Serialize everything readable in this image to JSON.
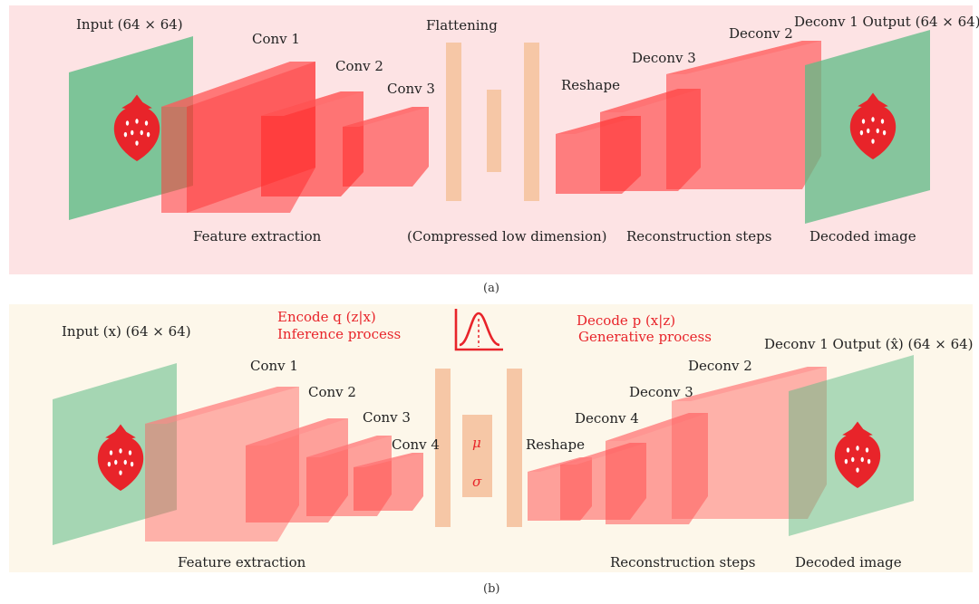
{
  "panel_a": {
    "input_label": "Input (64 × 64)",
    "conv1": "Conv 1",
    "conv2": "Conv 2",
    "conv3": "Conv 3",
    "flattening": "Flattening",
    "reshape": "Reshape",
    "deconv3": "Deconv 3",
    "deconv2": "Deconv 2",
    "output_label": "Deconv 1 Output (64 × 64)",
    "feature_extraction": "Feature extraction",
    "compressed": "(Compressed low dimension)",
    "reconstruction": "Reconstruction steps",
    "decoded": "Decoded image",
    "caption": "(a)"
  },
  "panel_b": {
    "input_label": "Input (x) (64 × 64)",
    "encode_line1": "Encode q (z|x)",
    "encode_line2": "Inference process",
    "decode_line1": "Decode p (x|z)",
    "decode_line2": "Generative process",
    "conv1": "Conv 1",
    "conv2": "Conv 2",
    "conv3": "Conv 3",
    "conv4": "Conv 4",
    "mu": "μ",
    "sigma": "σ",
    "reshape": "Reshape",
    "deconv4": "Deconv 4",
    "deconv3": "Deconv 3",
    "deconv2": "Deconv 2",
    "output_label": "Deconv 1 Output (x̂) (64 × 64)",
    "feature_extraction": "Feature extraction",
    "reconstruction": "Reconstruction steps",
    "decoded": "Decoded image",
    "caption": "(b)"
  },
  "colors": {
    "panel_a_bg": "#fde3e4",
    "panel_b_bg": "#fdf7ea",
    "block_fill": "#ff3b3b",
    "plane_fill": "#5dbb85",
    "bar_fill": "#f6c7a6",
    "accent_red": "#e8242a"
  },
  "icons": {
    "strawberry": "strawberry-icon",
    "gaussian": "gaussian-curve-icon"
  }
}
